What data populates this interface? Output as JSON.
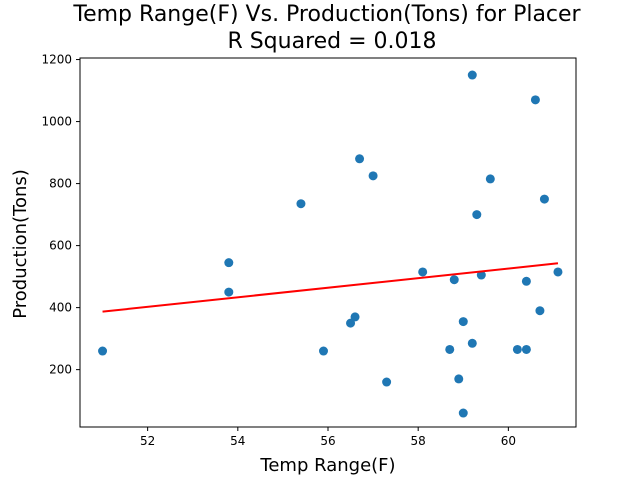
{
  "chart_data": {
    "type": "scatter",
    "title": "Temp Range(F) Vs. Production(Tons) for Placer",
    "subtitle": "R Squared =  0.018",
    "xlabel": "Temp Range(F)",
    "ylabel": "Production(Tons)",
    "xlim": [
      50.5,
      61.5
    ],
    "ylim": [
      15,
      1205
    ],
    "xticks": [
      52,
      54,
      56,
      58,
      60
    ],
    "yticks": [
      200,
      400,
      600,
      800,
      1000,
      1200
    ],
    "grid": false,
    "points": [
      {
        "x": 51.0,
        "y": 260
      },
      {
        "x": 53.8,
        "y": 545
      },
      {
        "x": 53.8,
        "y": 450
      },
      {
        "x": 55.4,
        "y": 735
      },
      {
        "x": 55.9,
        "y": 260
      },
      {
        "x": 56.5,
        "y": 350
      },
      {
        "x": 56.6,
        "y": 370
      },
      {
        "x": 56.7,
        "y": 880
      },
      {
        "x": 57.0,
        "y": 825
      },
      {
        "x": 57.3,
        "y": 160
      },
      {
        "x": 58.1,
        "y": 515
      },
      {
        "x": 58.7,
        "y": 265
      },
      {
        "x": 58.8,
        "y": 490
      },
      {
        "x": 58.9,
        "y": 170
      },
      {
        "x": 59.0,
        "y": 355
      },
      {
        "x": 59.0,
        "y": 60
      },
      {
        "x": 59.2,
        "y": 1150
      },
      {
        "x": 59.2,
        "y": 285
      },
      {
        "x": 59.3,
        "y": 700
      },
      {
        "x": 59.4,
        "y": 505
      },
      {
        "x": 59.6,
        "y": 815
      },
      {
        "x": 60.2,
        "y": 265
      },
      {
        "x": 60.4,
        "y": 265
      },
      {
        "x": 60.4,
        "y": 485
      },
      {
        "x": 60.6,
        "y": 1070
      },
      {
        "x": 60.7,
        "y": 390
      },
      {
        "x": 60.8,
        "y": 750
      },
      {
        "x": 61.1,
        "y": 515
      }
    ],
    "regression_line": {
      "x": [
        51.0,
        61.1
      ],
      "y": [
        387,
        543
      ]
    },
    "colors": {
      "points": "#1f77b4",
      "line": "#ff0000"
    }
  }
}
